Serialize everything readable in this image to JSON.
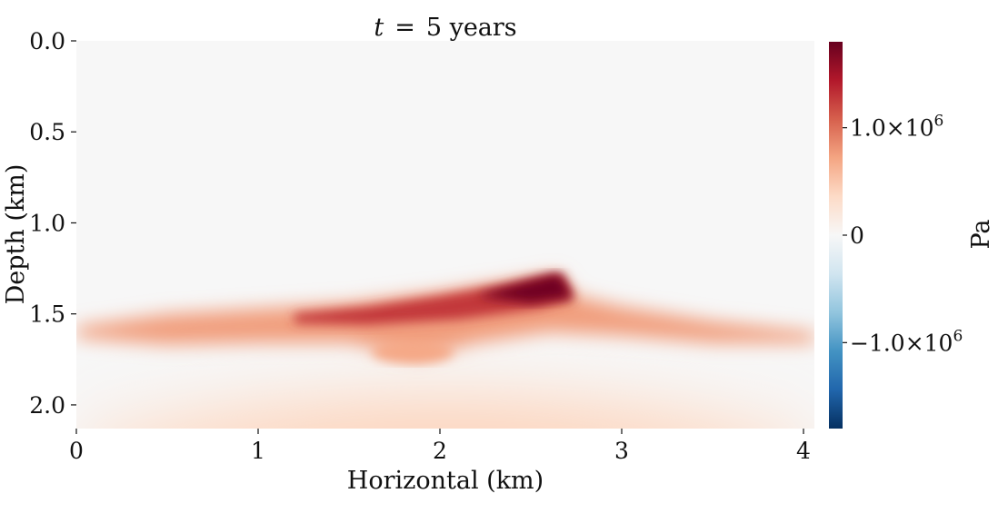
{
  "chart_data": {
    "type": "heatmap",
    "title": {
      "variable": "t",
      "operator": "=",
      "value": "5 years"
    },
    "xlabel": "Horizontal (km)",
    "ylabel": "Depth (km)",
    "xlim": [
      0,
      4.06
    ],
    "ylim": [
      0.0,
      2.13
    ],
    "y_inverted": true,
    "xticks": [
      0,
      1,
      2,
      3,
      4
    ],
    "xtick_labels": [
      "0",
      "1",
      "2",
      "3",
      "4"
    ],
    "yticks": [
      0.0,
      0.5,
      1.0,
      1.5,
      2.0
    ],
    "ytick_labels": [
      "0.0",
      "0.5",
      "1.0",
      "1.5",
      "2.0"
    ],
    "grid": false,
    "colormap": "RdBu_r",
    "colors": {
      "low": "#053061",
      "mid": "#f7f7f7",
      "high": "#67001f"
    },
    "colorbar": {
      "label": "Pa",
      "range": [
        -1800000,
        1800000
      ],
      "ticks": [
        1000000,
        0,
        -1000000
      ],
      "tick_labels": [
        {
          "mantissa": "1.0×10",
          "exponent": "6"
        },
        {
          "mantissa": "0",
          "exponent": ""
        },
        {
          "mantissa": "−1.0×10",
          "exponent": "6"
        }
      ]
    },
    "regions": [
      {
        "kind": "background",
        "description_value": 0
      },
      {
        "kind": "lower-zone-peak-value",
        "value": 450000,
        "depth_start": 1.55
      },
      {
        "kind": "layer-ridge",
        "x_start": 0.2,
        "x_end": 4.05,
        "peak_x": 2.65,
        "peak_top_depth": 1.28,
        "peak_value": 1750000,
        "base_value": 750000
      },
      {
        "kind": "lobe",
        "x_center": 1.85,
        "depth": 1.75,
        "value": 700000
      }
    ]
  }
}
